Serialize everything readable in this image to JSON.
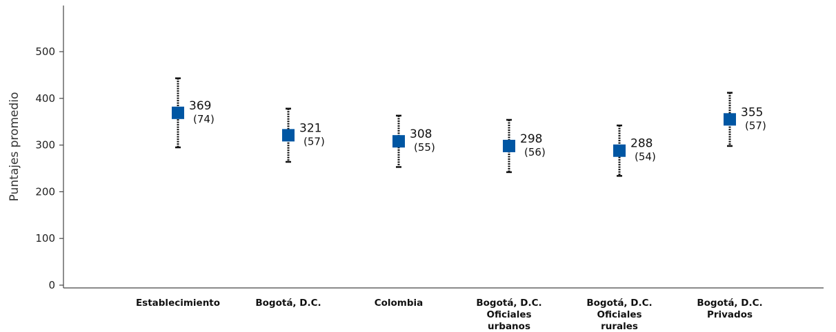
{
  "colors": {
    "marker": "#0056a3",
    "errorbar": "#111111",
    "axis": "#444444"
  },
  "chart_data": {
    "type": "scatter",
    "ylabel": "Puntajes promedio",
    "ylim": [
      0,
      500
    ],
    "yticks": [
      "0",
      "100",
      "200",
      "300",
      "400",
      "500"
    ],
    "grid": false,
    "legend": "none",
    "categories": [
      [
        "Establecimiento"
      ],
      [
        "Bogotá, D.C."
      ],
      [
        "Colombia"
      ],
      [
        "Bogotá, D.C.",
        "Oficiales",
        "urbanos"
      ],
      [
        "Bogotá, D.C.",
        "Oficiales",
        "rurales"
      ],
      [
        "Bogotá, D.C.",
        "Privados"
      ]
    ],
    "values": [
      369,
      321,
      308,
      298,
      288,
      355
    ],
    "value_labels": [
      "369",
      "321",
      "308",
      "298",
      "288",
      "355"
    ],
    "sd_labels": [
      "(74)",
      "(57)",
      "(55)",
      "(56)",
      "(54)",
      "(57)"
    ],
    "error_low": [
      295,
      264,
      253,
      242,
      234,
      298
    ],
    "error_high": [
      443,
      378,
      363,
      354,
      342,
      412
    ]
  }
}
